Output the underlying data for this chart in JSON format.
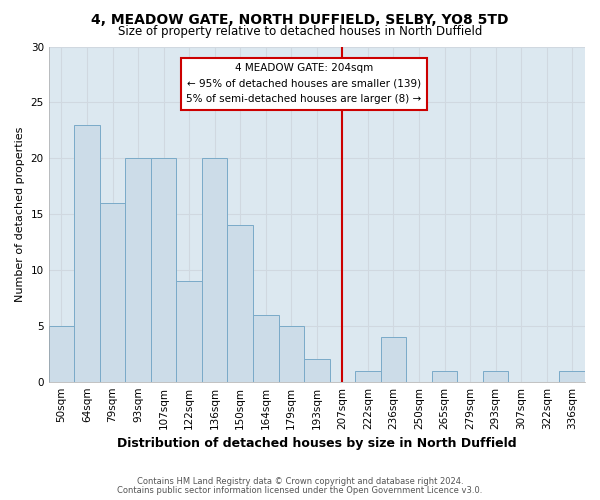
{
  "title": "4, MEADOW GATE, NORTH DUFFIELD, SELBY, YO8 5TD",
  "subtitle": "Size of property relative to detached houses in North Duffield",
  "xlabel": "Distribution of detached houses by size in North Duffield",
  "ylabel": "Number of detached properties",
  "categories": [
    "50sqm",
    "64sqm",
    "79sqm",
    "93sqm",
    "107sqm",
    "122sqm",
    "136sqm",
    "150sqm",
    "164sqm",
    "179sqm",
    "193sqm",
    "207sqm",
    "222sqm",
    "236sqm",
    "250sqm",
    "265sqm",
    "279sqm",
    "293sqm",
    "307sqm",
    "322sqm",
    "336sqm"
  ],
  "values": [
    5,
    23,
    16,
    20,
    20,
    9,
    20,
    14,
    6,
    5,
    2,
    0,
    1,
    4,
    0,
    1,
    0,
    1,
    0,
    0,
    1
  ],
  "bar_color": "#ccdce8",
  "bar_edge_color": "#7aaac8",
  "grid_color": "#d0d8e0",
  "vline_x": 11,
  "vline_color": "#cc0000",
  "annotation_title": "4 MEADOW GATE: 204sqm",
  "annotation_line1": "← 95% of detached houses are smaller (139)",
  "annotation_line2": "5% of semi-detached houses are larger (8) →",
  "annotation_box_color": "white",
  "annotation_box_edge": "#cc0000",
  "ylim": [
    0,
    30
  ],
  "yticks": [
    0,
    5,
    10,
    15,
    20,
    25,
    30
  ],
  "footer1": "Contains HM Land Registry data © Crown copyright and database right 2024.",
  "footer2": "Contains public sector information licensed under the Open Government Licence v3.0.",
  "bg_color": "#ffffff",
  "plot_bg_color": "#dce8f0",
  "title_fontsize": 10,
  "subtitle_fontsize": 8.5,
  "xlabel_fontsize": 9,
  "ylabel_fontsize": 8,
  "tick_fontsize": 7.5
}
